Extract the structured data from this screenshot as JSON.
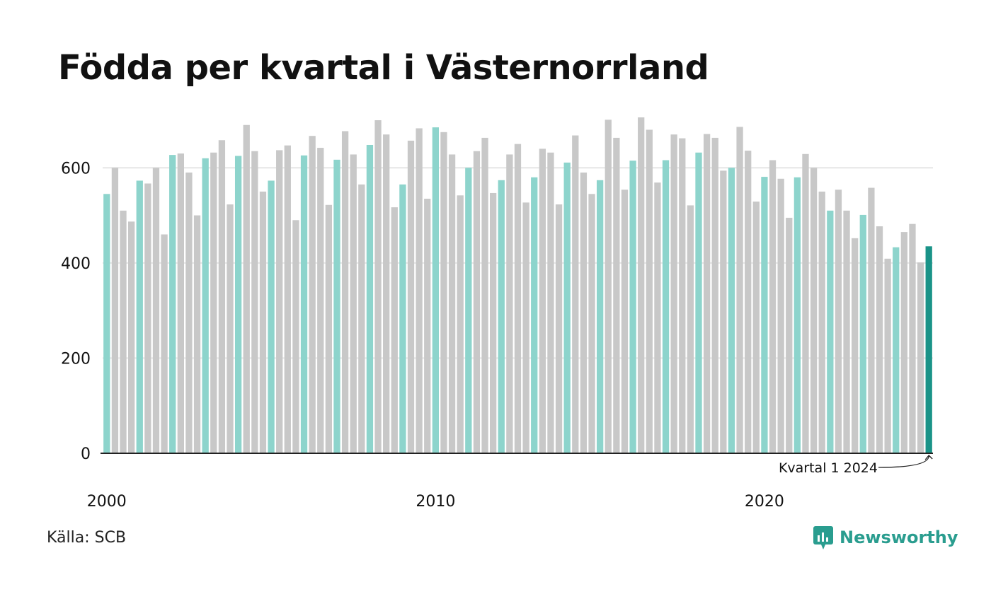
{
  "title": "Födda per kvartal i Västernorrland",
  "source": "Källa: SCB",
  "brand": "Newsworthy",
  "colors": {
    "q1": "#8dd4cc",
    "other": "#c8c8c8",
    "latest": "#1a9388",
    "grid": "#e6e6e6",
    "axis": "#222222",
    "text": "#111111",
    "brand": "#2a9d8f"
  },
  "chart_data": {
    "type": "bar",
    "title": "Födda per kvartal i Västernorrland",
    "xlabel": "",
    "ylabel": "",
    "ylim": [
      0,
      700
    ],
    "yticks": [
      0,
      200,
      400,
      600
    ],
    "xticks": [
      {
        "label": "2000",
        "index": 0
      },
      {
        "label": "2010",
        "index": 40
      },
      {
        "label": "2020",
        "index": 80
      }
    ],
    "grid": true,
    "start_year": 2000,
    "highlight": "Q1 bars colored teal, other quarters grey, latest bar dark teal",
    "annotation": {
      "text": "Kvartal 1 2024",
      "index": 100
    },
    "values": [
      545,
      600,
      510,
      487,
      573,
      567,
      600,
      460,
      627,
      630,
      590,
      500,
      620,
      632,
      658,
      523,
      625,
      690,
      635,
      550,
      573,
      637,
      647,
      490,
      626,
      667,
      642,
      522,
      617,
      677,
      628,
      565,
      648,
      700,
      670,
      517,
      565,
      657,
      683,
      535,
      685,
      675,
      628,
      542,
      600,
      635,
      663,
      547,
      574,
      628,
      650,
      527,
      580,
      640,
      632,
      523,
      611,
      668,
      590,
      545,
      574,
      701,
      663,
      554,
      615,
      706,
      680,
      569,
      616,
      670,
      662,
      521,
      632,
      671,
      663,
      594,
      600,
      686,
      636,
      529,
      581,
      616,
      577,
      495,
      580,
      629,
      600,
      550,
      510,
      554,
      510,
      452,
      501,
      558,
      477,
      409,
      433,
      465,
      482,
      401,
      435
    ]
  }
}
